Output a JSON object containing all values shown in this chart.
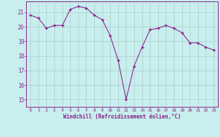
{
  "x": [
    0,
    1,
    2,
    3,
    4,
    5,
    6,
    7,
    8,
    9,
    10,
    11,
    12,
    13,
    14,
    15,
    16,
    17,
    18,
    19,
    20,
    21,
    22,
    23
  ],
  "y": [
    20.8,
    20.6,
    19.9,
    20.1,
    20.1,
    21.2,
    21.4,
    21.3,
    20.8,
    20.5,
    19.4,
    17.7,
    15.0,
    17.3,
    18.6,
    19.8,
    19.9,
    20.1,
    19.9,
    19.6,
    18.9,
    18.9,
    18.6,
    18.4
  ],
  "line_color": "#882288",
  "marker_color": "#882288",
  "bg_color": "#c8eeee",
  "grid_color": "#aacccc",
  "xlabel": "Windchill (Refroidissement éolien,°C)",
  "xlabel_color": "#882288",
  "tick_color": "#882288",
  "ylim": [
    14.5,
    21.75
  ],
  "yticks": [
    15,
    16,
    17,
    18,
    19,
    20,
    21
  ],
  "xticks": [
    0,
    1,
    2,
    3,
    4,
    5,
    6,
    7,
    8,
    9,
    10,
    11,
    12,
    13,
    14,
    15,
    16,
    17,
    18,
    19,
    20,
    21,
    22,
    23
  ]
}
